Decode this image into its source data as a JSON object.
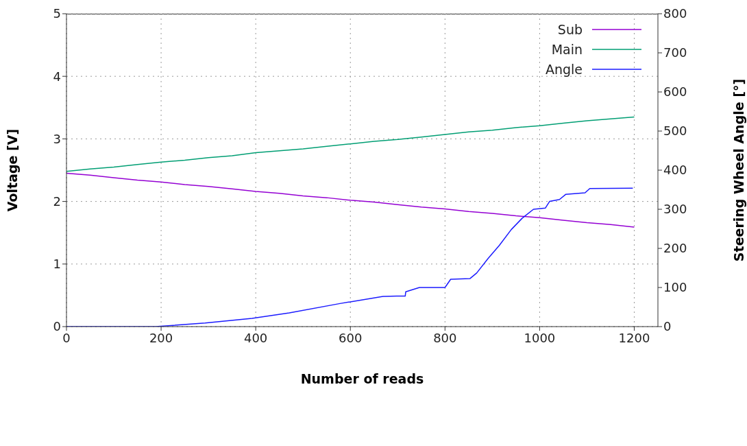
{
  "chart_data": {
    "type": "line",
    "xlabel": "Number of reads",
    "ylabel": "Voltage [V]",
    "y2label": "Steering Wheel Angle [°]",
    "xlim": [
      0,
      1250
    ],
    "xticks": [
      0,
      200,
      400,
      600,
      800,
      1000,
      1200
    ],
    "ylim": [
      0,
      5
    ],
    "yticks": [
      0,
      1,
      2,
      3,
      4,
      5
    ],
    "y2lim": [
      0,
      800
    ],
    "y2ticks": [
      0,
      100,
      200,
      300,
      400,
      500,
      600,
      700,
      800
    ],
    "grid": true,
    "legend": "top right",
    "marker": "none",
    "line_style": "solid",
    "series": [
      {
        "name": "Sub",
        "color": "#9400d3",
        "x": [
          0,
          50,
          100,
          150,
          200,
          250,
          300,
          350,
          400,
          450,
          500,
          550,
          600,
          650,
          700,
          750,
          800,
          850,
          900,
          950,
          1000,
          1050,
          1100,
          1150,
          1200
        ],
        "values": [
          2.45,
          2.42,
          2.38,
          2.34,
          2.31,
          2.27,
          2.24,
          2.2,
          2.16,
          2.13,
          2.09,
          2.06,
          2.02,
          1.99,
          1.95,
          1.91,
          1.88,
          1.84,
          1.81,
          1.77,
          1.74,
          1.7,
          1.66,
          1.63,
          1.59
        ]
      },
      {
        "name": "Main",
        "color": "#009e73",
        "x": [
          0,
          50,
          100,
          150,
          200,
          250,
          300,
          350,
          400,
          450,
          500,
          550,
          600,
          650,
          700,
          750,
          800,
          850,
          900,
          950,
          1000,
          1050,
          1100,
          1150,
          1200
        ],
        "values": [
          2.48,
          2.52,
          2.55,
          2.59,
          2.63,
          2.66,
          2.7,
          2.73,
          2.78,
          2.81,
          2.84,
          2.88,
          2.92,
          2.96,
          2.99,
          3.03,
          3.07,
          3.11,
          3.14,
          3.18,
          3.21,
          3.25,
          3.29,
          3.32,
          3.35
        ]
      },
      {
        "name": "Angle",
        "color": "#1a1aff",
        "axis": "y2",
        "x": [
          0,
          188,
          293,
          392,
          471,
          578,
          669,
          698,
          716,
          717,
          746,
          800,
          812,
          853,
          867,
          891,
          915,
          940,
          963,
          987,
          1012,
          1021,
          1042,
          1055,
          1096,
          1106,
          1197
        ],
        "values": [
          0,
          0,
          9,
          21,
          35,
          59,
          77,
          78,
          78,
          89,
          100,
          100,
          121,
          123,
          137,
          174,
          208,
          248,
          277,
          300,
          303,
          320,
          325,
          338,
          342,
          353,
          354
        ]
      }
    ]
  }
}
